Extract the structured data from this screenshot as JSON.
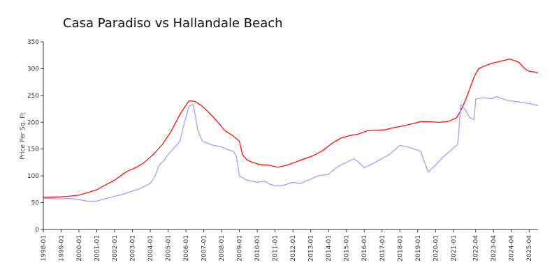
{
  "chart_data": {
    "type": "line",
    "title": "Casa Paradiso vs Hallandale Beach",
    "xlabel": "",
    "ylabel": "Price Per Sq. Ft",
    "ylim": [
      0,
      350
    ],
    "yticks": [
      0,
      50,
      100,
      150,
      200,
      250,
      300,
      350
    ],
    "grid": false,
    "xrange": [
      "1998-01",
      "2025-10"
    ],
    "xticks": [
      "1998-01",
      "1999-01",
      "2000-01",
      "2001-01",
      "2002-01",
      "2003-01",
      "2004-01",
      "2005-01",
      "2006-01",
      "2007-01",
      "2008-01",
      "2009-01",
      "2010-01",
      "2011-01",
      "2012-01",
      "2013-01",
      "2014-01",
      "2015-01",
      "2016-01",
      "2017-01",
      "2018-01",
      "2019-01",
      "2020-01",
      "2021-01",
      "2022-04",
      "2023-04",
      "2024-04",
      "2025-04"
    ],
    "series": [
      {
        "color": "#ff0000",
        "points": [
          [
            "1998-01",
            60
          ],
          [
            "1999-01",
            61
          ],
          [
            "1999-06",
            62
          ],
          [
            "2000-01",
            64
          ],
          [
            "2000-06",
            68
          ],
          [
            "2001-01",
            74
          ],
          [
            "2001-06",
            82
          ],
          [
            "2002-01",
            92
          ],
          [
            "2002-05",
            100
          ],
          [
            "2002-09",
            108
          ],
          [
            "2003-03",
            115
          ],
          [
            "2003-09",
            125
          ],
          [
            "2004-03",
            140
          ],
          [
            "2004-09",
            158
          ],
          [
            "2005-03",
            183
          ],
          [
            "2005-09",
            215
          ],
          [
            "2006-03",
            240
          ],
          [
            "2006-07",
            239
          ],
          [
            "2006-11",
            232
          ],
          [
            "2007-03",
            222
          ],
          [
            "2007-09",
            205
          ],
          [
            "2008-03",
            185
          ],
          [
            "2008-09",
            174
          ],
          [
            "2009-01",
            165
          ],
          [
            "2009-03",
            140
          ],
          [
            "2009-06",
            130
          ],
          [
            "2009-10",
            125
          ],
          [
            "2010-03",
            121
          ],
          [
            "2010-09",
            120
          ],
          [
            "2011-03",
            116
          ],
          [
            "2011-09",
            120
          ],
          [
            "2012-03",
            126
          ],
          [
            "2012-09",
            132
          ],
          [
            "2013-03",
            138
          ],
          [
            "2013-09",
            147
          ],
          [
            "2014-03",
            160
          ],
          [
            "2014-09",
            170
          ],
          [
            "2015-03",
            175
          ],
          [
            "2015-09",
            178
          ],
          [
            "2016-03",
            184
          ],
          [
            "2016-09",
            185
          ],
          [
            "2017-03",
            186
          ],
          [
            "2017-09",
            190
          ],
          [
            "2018-03",
            193
          ],
          [
            "2018-09",
            197
          ],
          [
            "2019-03",
            201
          ],
          [
            "2019-09",
            201
          ],
          [
            "2020-03",
            200
          ],
          [
            "2020-09",
            201
          ],
          [
            "2021-03",
            208
          ],
          [
            "2021-06",
            222
          ],
          [
            "2021-09",
            240
          ],
          [
            "2021-12",
            262
          ],
          [
            "2022-03",
            285
          ],
          [
            "2022-06",
            300
          ],
          [
            "2022-10",
            305
          ],
          [
            "2023-03",
            310
          ],
          [
            "2023-09",
            314
          ],
          [
            "2024-03",
            318
          ],
          [
            "2024-09",
            312
          ],
          [
            "2025-01",
            300
          ],
          [
            "2025-04",
            295
          ],
          [
            "2025-07",
            294
          ],
          [
            "2025-10",
            292
          ]
        ]
      },
      {
        "color": "#9999ff",
        "points": [
          [
            "1998-01",
            58
          ],
          [
            "1999-01",
            57
          ],
          [
            "1999-06",
            58
          ],
          [
            "2000-01",
            56
          ],
          [
            "2000-06",
            53
          ],
          [
            "2001-01",
            53
          ],
          [
            "2001-06",
            57
          ],
          [
            "2002-01",
            62
          ],
          [
            "2002-06",
            65
          ],
          [
            "2003-01",
            72
          ],
          [
            "2003-06",
            76
          ],
          [
            "2004-01",
            86
          ],
          [
            "2004-04",
            98
          ],
          [
            "2004-07",
            120
          ],
          [
            "2004-10",
            128
          ],
          [
            "2005-01",
            140
          ],
          [
            "2005-06",
            155
          ],
          [
            "2005-09",
            165
          ],
          [
            "2005-12",
            200
          ],
          [
            "2006-03",
            230
          ],
          [
            "2006-06",
            233
          ],
          [
            "2006-09",
            185
          ],
          [
            "2006-12",
            165
          ],
          [
            "2007-06",
            158
          ],
          [
            "2008-01",
            154
          ],
          [
            "2008-06",
            148
          ],
          [
            "2008-09",
            146
          ],
          [
            "2008-11",
            135
          ],
          [
            "2009-01",
            100
          ],
          [
            "2009-06",
            92
          ],
          [
            "2010-01",
            88
          ],
          [
            "2010-06",
            90
          ],
          [
            "2010-09",
            85
          ],
          [
            "2011-01",
            81
          ],
          [
            "2011-06",
            82
          ],
          [
            "2012-01",
            88
          ],
          [
            "2012-06",
            86
          ],
          [
            "2013-01",
            94
          ],
          [
            "2013-06",
            100
          ],
          [
            "2014-01",
            103
          ],
          [
            "2014-06",
            115
          ],
          [
            "2014-09",
            120
          ],
          [
            "2015-01",
            125
          ],
          [
            "2015-06",
            132
          ],
          [
            "2015-09",
            126
          ],
          [
            "2016-01",
            115
          ],
          [
            "2016-06",
            122
          ],
          [
            "2017-01",
            132
          ],
          [
            "2017-06",
            140
          ],
          [
            "2018-01",
            157
          ],
          [
            "2018-06",
            154
          ],
          [
            "2019-01",
            148
          ],
          [
            "2019-03",
            146
          ],
          [
            "2019-08",
            107
          ],
          [
            "2020-01",
            120
          ],
          [
            "2020-06",
            135
          ],
          [
            "2020-09",
            142
          ],
          [
            "2021-01",
            152
          ],
          [
            "2021-04",
            159
          ],
          [
            "2021-06",
            233
          ],
          [
            "2021-09",
            223
          ],
          [
            "2021-12",
            209
          ],
          [
            "2022-03",
            205
          ],
          [
            "2022-04",
            243
          ],
          [
            "2022-09",
            246
          ],
          [
            "2023-03",
            244
          ],
          [
            "2023-06",
            248
          ],
          [
            "2024-01",
            241
          ],
          [
            "2024-09",
            238
          ],
          [
            "2025-06",
            234
          ],
          [
            "2025-10",
            231
          ]
        ]
      }
    ]
  }
}
